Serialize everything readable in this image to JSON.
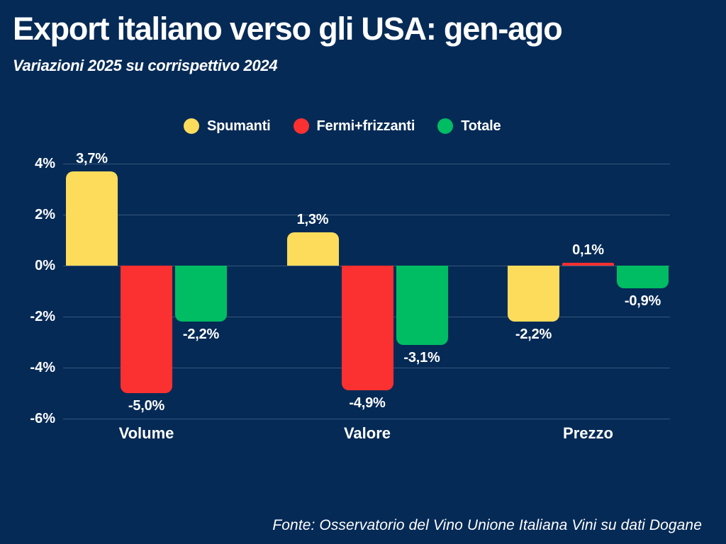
{
  "page": {
    "title": "Export italiano verso gli USA: gen-ago",
    "subtitle": "Variazioni 2025 su corrispettivo 2024",
    "source": "Fonte: Osservatorio del Vino Unione Italiana Vini su dati Dogane",
    "background_color": "#052a56",
    "text_color": "#ffffff",
    "gridline_color": "rgba(190,205,228,0.28)"
  },
  "chart_data": {
    "type": "bar",
    "title": "Export italiano verso gli USA: gen-ago",
    "subtitle": "Variazioni 2025 su corrispettivo 2024",
    "categories": [
      "Volume",
      "Valore",
      "Prezzo"
    ],
    "series": [
      {
        "name": "Spumanti",
        "color": "#fddc5c",
        "values": [
          3.7,
          1.3,
          -2.2
        ],
        "labels": [
          "3,7%",
          "1,3%",
          "-2,2%"
        ]
      },
      {
        "name": "Fermi+frizzanti",
        "color": "#fb3030",
        "values": [
          -5.0,
          -4.9,
          0.1
        ],
        "labels": [
          "-5,0%",
          "-4,9%",
          "0,1%"
        ]
      },
      {
        "name": "Totale",
        "color": "#00bd63",
        "values": [
          -2.2,
          -3.1,
          -0.9
        ],
        "labels": [
          "-2,2%",
          "-3,1%",
          "-0,9%"
        ]
      }
    ],
    "xlabel": "",
    "ylabel": "",
    "ylim": [
      -6,
      4
    ],
    "yticks": {
      "values": [
        4,
        2,
        0,
        -2,
        -4,
        -6
      ],
      "labels": [
        "4%",
        "2%",
        "0%",
        "-2%",
        "-4%",
        "-6%"
      ]
    },
    "grid": "horizontal",
    "legend_position": "top",
    "source": "Fonte: Osservatorio del Vino Unione Italiana Vini su dati Dogane"
  }
}
